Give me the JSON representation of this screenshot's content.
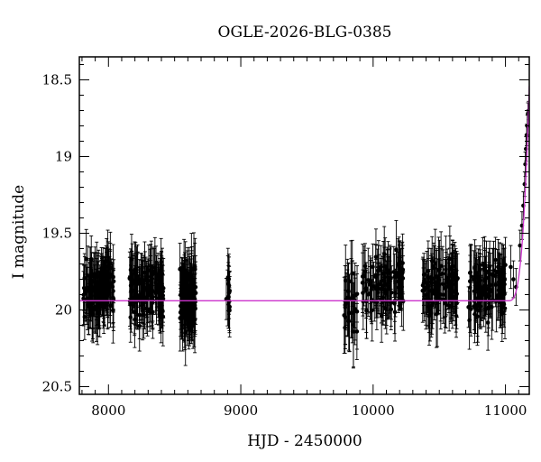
{
  "chart_data": {
    "type": "scatter",
    "title": "OGLE-2026-BLG-0385",
    "xlabel": "HJD - 2450000",
    "ylabel": "I magnitude",
    "xlim": [
      7780,
      11180
    ],
    "ylim": [
      20.55,
      18.35
    ],
    "y_inverted": true,
    "xticks": [
      8000,
      9000,
      10000,
      11000
    ],
    "yticks": [
      18.5,
      19,
      19.5,
      20,
      20.5
    ],
    "xtick_labels": [
      "8000",
      "9000",
      "10000",
      "11000"
    ],
    "ytick_labels": [
      "18.5",
      "19",
      "19.5",
      "20",
      "20.5"
    ],
    "marker_color": "#000000",
    "model_color": "#cc33cc",
    "baseline_mag": 19.94,
    "seasons": [
      {
        "start": 7810,
        "end": 8040,
        "n": 130,
        "center": 19.86,
        "spread": 0.16,
        "err": 0.17
      },
      {
        "start": 8160,
        "end": 8420,
        "n": 140,
        "center": 19.88,
        "spread": 0.16,
        "err": 0.17
      },
      {
        "start": 8540,
        "end": 8660,
        "n": 100,
        "center": 19.92,
        "spread": 0.17,
        "err": 0.19
      },
      {
        "start": 8890,
        "end": 8920,
        "n": 15,
        "center": 19.9,
        "spread": 0.13,
        "err": 0.17
      },
      {
        "start": 9780,
        "end": 9880,
        "n": 30,
        "center": 19.98,
        "spread": 0.17,
        "err": 0.22
      },
      {
        "start": 9920,
        "end": 10230,
        "n": 110,
        "center": 19.82,
        "spread": 0.16,
        "err": 0.17
      },
      {
        "start": 10370,
        "end": 10640,
        "n": 100,
        "center": 19.85,
        "spread": 0.16,
        "err": 0.18
      },
      {
        "start": 10720,
        "end": 11000,
        "n": 120,
        "center": 19.86,
        "spread": 0.16,
        "err": 0.17
      }
    ],
    "rise_points": [
      {
        "x": 11040,
        "y": 19.72,
        "err": 0.14
      },
      {
        "x": 11060,
        "y": 19.8,
        "err": 0.12
      },
      {
        "x": 11080,
        "y": 19.85,
        "err": 0.12
      },
      {
        "x": 11110,
        "y": 19.58,
        "err": 0.1
      },
      {
        "x": 11125,
        "y": 19.45,
        "err": 0.09
      },
      {
        "x": 11135,
        "y": 19.32,
        "err": 0.09
      },
      {
        "x": 11145,
        "y": 19.18,
        "err": 0.08
      },
      {
        "x": 11150,
        "y": 19.05,
        "err": 0.08
      },
      {
        "x": 11155,
        "y": 18.95,
        "err": 0.08
      },
      {
        "x": 11160,
        "y": 18.86,
        "err": 0.07
      },
      {
        "x": 11165,
        "y": 18.8,
        "err": 0.07
      },
      {
        "x": 11170,
        "y": 18.72,
        "err": 0.07
      },
      {
        "x": 11175,
        "y": 18.7,
        "err": 0.06
      }
    ]
  }
}
